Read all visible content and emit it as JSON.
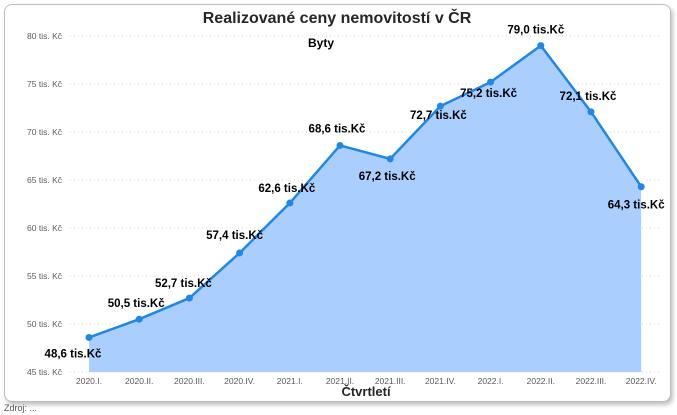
{
  "chart_data": {
    "type": "area",
    "title": "Realizované ceny nemovitostí v ČR",
    "subtitle": "Byty",
    "xlabel": "Čtvrtletí",
    "ylabel": "",
    "categories": [
      "2020.I.",
      "2020.II.",
      "2020.III.",
      "2020.IV.",
      "2021.I.",
      "2021.II.",
      "2021.III.",
      "2021.IV.",
      "2022.I.",
      "2022.II.",
      "2022.III.",
      "2022.IV."
    ],
    "values": [
      48.6,
      50.5,
      52.7,
      57.4,
      62.6,
      68.6,
      67.2,
      72.7,
      75.2,
      79.0,
      72.1,
      64.3
    ],
    "data_labels": [
      "48,6 tis.Kč",
      "50,5 tis.Kč",
      "52,7 tis.Kč",
      "57,4 tis.Kč",
      "62,6 tis.Kč",
      "68,6 tis.Kč",
      "67,2 tis.Kč",
      "72,7 tis.Kč",
      "75,2 tis.Kč",
      "79,0 tis.Kč",
      "72,1 tis.Kč",
      "64,3 tis.Kč"
    ],
    "yticks": [
      45,
      50,
      55,
      60,
      65,
      70,
      75,
      80
    ],
    "ytick_labels": [
      "45 tis. Kč",
      "50 tis. Kč",
      "55 tis. Kč",
      "60 tis. Kč",
      "65 tis. Kč",
      "70 tis. Kč",
      "75 tis. Kč",
      "80 tis. Kč"
    ],
    "ylim": [
      45,
      80
    ],
    "grid": true,
    "colors": {
      "line": "#1f87e5",
      "fill": "#aacfff",
      "grid": "#d9d9d9",
      "text": "#000000",
      "tick": "#595959"
    }
  },
  "footnote": "Zdroj: ..."
}
